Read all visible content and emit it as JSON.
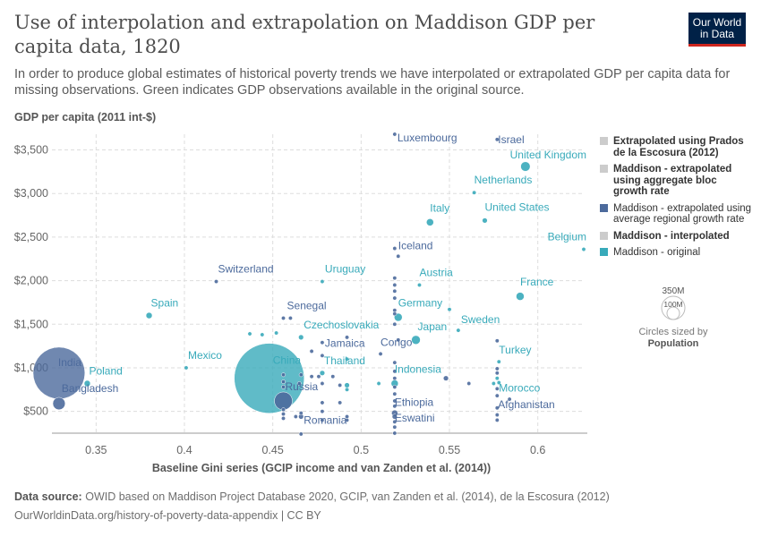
{
  "title": "Use of interpolation and extrapolation on Maddison GDP per capita data, 1820",
  "subtitle": "In order to produce global estimates of historical poverty trends we have interpolated or extrapolated GDP per capita data for missing observations. Green indicates GDP observations available in the original source.",
  "logo": {
    "line1": "Our World",
    "line2": "in Data"
  },
  "footer": {
    "source_label": "Data source:",
    "source_text": "OWID based on Maddison Project Database 2020, GCIP, van Zanden et al. (2014), de la Escosura (2012)",
    "url": "OurWorldinData.org/history-of-poverty-data-appendix | CC BY"
  },
  "legend": {
    "items": [
      {
        "label": "Extrapolated using Prados de la Escosura (2012)",
        "color": "#cccccc",
        "bold": true
      },
      {
        "label": "Maddison - extrapolated using aggregate bloc growth rate",
        "color": "#cccccc",
        "bold": true
      },
      {
        "label": "Maddison - extrapolated using average regional growth rate",
        "color": "#4c6a9c",
        "bold": false
      },
      {
        "label": "Maddison - interpolated",
        "color": "#cccccc",
        "bold": true
      },
      {
        "label": "Maddison - original",
        "color": "#38aaba",
        "bold": false
      }
    ],
    "size_title": "Circles sized by",
    "size_variable": "Population",
    "size_big": "350M",
    "size_small": "100M"
  },
  "colors": {
    "original": "#38aaba",
    "regional": "#4c6a9c",
    "grid": "#dddddd"
  },
  "chart_data": {
    "type": "scatter",
    "xlabel": "Baseline Gini series (GCIP income and van Zanden et al. (2014))",
    "ylabel": "GDP per capita (2011 int-$)",
    "xlim": [
      0.325,
      0.626
    ],
    "ylim": [
      250,
      3680
    ],
    "xticks": [
      {
        "v": 0.35,
        "label": "0.35"
      },
      {
        "v": 0.4,
        "label": "0.4"
      },
      {
        "v": 0.45,
        "label": "0.45"
      },
      {
        "v": 0.5,
        "label": "0.5"
      },
      {
        "v": 0.55,
        "label": "0.55"
      },
      {
        "v": 0.6,
        "label": "0.6"
      }
    ],
    "yticks": [
      {
        "v": 500,
        "label": "$500"
      },
      {
        "v": 1000,
        "label": "$1,000"
      },
      {
        "v": 1500,
        "label": "$1,500"
      },
      {
        "v": 2000,
        "label": "$2,000"
      },
      {
        "v": 2500,
        "label": "$2,500"
      },
      {
        "v": 3000,
        "label": "$3,000"
      },
      {
        "v": 3500,
        "label": "$3,500"
      }
    ],
    "grid": true,
    "legend_position": "right",
    "points": [
      {
        "x": 0.329,
        "y": 940,
        "pop": 209,
        "s": "regional",
        "label": "India",
        "ldx": -1,
        "ldy": -8
      },
      {
        "x": 0.329,
        "y": 590,
        "pop": 12,
        "s": "regional",
        "label": "Bangladesh",
        "ldx": 3,
        "ldy": -13
      },
      {
        "x": 0.345,
        "y": 820,
        "pop": 3,
        "s": "original",
        "label": "Poland",
        "ldx": 2,
        "ldy": -10
      },
      {
        "x": 0.38,
        "y": 1600,
        "pop": 3,
        "s": "original",
        "label": "Spain",
        "ldx": 2,
        "ldy": -10
      },
      {
        "x": 0.401,
        "y": 1000,
        "pop": 1,
        "s": "original",
        "label": "Mexico",
        "ldx": 2,
        "ldy": -10
      },
      {
        "x": 0.418,
        "y": 1990,
        "pop": 1,
        "s": "regional",
        "label": "Switzerland",
        "ldx": 2,
        "ldy": -10
      },
      {
        "x": 0.448,
        "y": 880,
        "pop": 381,
        "s": "original",
        "label": "China",
        "ldx": 4,
        "ldy": -16
      },
      {
        "x": 0.456,
        "y": 620,
        "pop": 25,
        "s": "regional",
        "label": "Russia",
        "ldx": 2,
        "ldy": -12
      },
      {
        "x": 0.456,
        "y": 1570,
        "pop": 1,
        "s": "regional",
        "label": "Senegal",
        "ldx": 4,
        "ldy": -10
      },
      {
        "x": 0.478,
        "y": 1990,
        "pop": 1,
        "s": "original",
        "label": "Uruguay",
        "ldx": 3,
        "ldy": -10
      },
      {
        "x": 0.466,
        "y": 1350,
        "pop": 2,
        "s": "original",
        "label": "Czechoslovakia",
        "ldx": 3,
        "ldy": -10
      },
      {
        "x": 0.478,
        "y": 1140,
        "pop": 1,
        "s": "regional",
        "label": "Jamaica",
        "ldx": 3,
        "ldy": -10
      },
      {
        "x": 0.478,
        "y": 940,
        "pop": 2,
        "s": "original",
        "label": "Thailand",
        "ldx": 2,
        "ldy": -10
      },
      {
        "x": 0.466,
        "y": 440,
        "pop": 2,
        "s": "regional",
        "label": "Romania",
        "ldx": 3,
        "ldy": 8
      },
      {
        "x": 0.519,
        "y": 3680,
        "pop": 1,
        "s": "regional",
        "label": "Luxembourg",
        "ldx": 3,
        "ldy": 8
      },
      {
        "x": 0.577,
        "y": 3620,
        "pop": 1,
        "s": "regional",
        "label": "Israel",
        "ldx": 1,
        "ldy": 4
      },
      {
        "x": 0.593,
        "y": 3310,
        "pop": 7,
        "s": "original",
        "label": "United Kingdom",
        "ldx": -3,
        "ldy": -9
      },
      {
        "x": 0.564,
        "y": 3010,
        "pop": 1,
        "s": "original",
        "label": "Netherlands",
        "ldx": 0,
        "ldy": -10
      },
      {
        "x": 0.539,
        "y": 2670,
        "pop": 4,
        "s": "original",
        "label": "Italy",
        "ldx": 0,
        "ldy": -12
      },
      {
        "x": 0.57,
        "y": 2690,
        "pop": 2,
        "s": "original",
        "label": "United States",
        "ldx": 0,
        "ldy": -11
      },
      {
        "x": 0.626,
        "y": 2360,
        "pop": 1,
        "s": "original",
        "label": "Belgium",
        "ldx": 0,
        "ldy": -10
      },
      {
        "x": 0.521,
        "y": 2280,
        "pop": 1,
        "s": "regional",
        "label": "Iceland",
        "ldx": 0,
        "ldy": -8
      },
      {
        "x": 0.533,
        "y": 1950,
        "pop": 1,
        "s": "original",
        "label": "Austria",
        "ldx": 0,
        "ldy": -10
      },
      {
        "x": 0.59,
        "y": 1820,
        "pop": 5,
        "s": "original",
        "label": "France",
        "ldx": 0,
        "ldy": -12
      },
      {
        "x": 0.521,
        "y": 1580,
        "pop": 5,
        "s": "original",
        "label": "Germany",
        "ldx": 0,
        "ldy": -12
      },
      {
        "x": 0.555,
        "y": 1430,
        "pop": 1,
        "s": "original",
        "label": "Sweden",
        "ldx": 3,
        "ldy": -8
      },
      {
        "x": 0.531,
        "y": 1320,
        "pop": 6,
        "s": "original",
        "label": "Japan",
        "ldx": 2,
        "ldy": -11
      },
      {
        "x": 0.511,
        "y": 1160,
        "pop": 1,
        "s": "regional",
        "label": "Congo",
        "ldx": 0,
        "ldy": -9
      },
      {
        "x": 0.519,
        "y": 820,
        "pop": 4,
        "s": "original",
        "label": "Indonesia",
        "ldx": 0,
        "ldy": -12
      },
      {
        "x": 0.578,
        "y": 1070,
        "pop": 1,
        "s": "original",
        "label": "Turkey",
        "ldx": 0,
        "ldy": -9
      },
      {
        "x": 0.578,
        "y": 830,
        "pop": 1,
        "s": "original",
        "label": "Morocco",
        "ldx": 0,
        "ldy": 10
      },
      {
        "x": 0.519,
        "y": 480,
        "pop": 3,
        "s": "regional",
        "label": "Ethiopia",
        "ldx": 0,
        "ldy": -8
      },
      {
        "x": 0.577,
        "y": 540,
        "pop": 1,
        "s": "regional",
        "label": "Afghanistan",
        "ldx": 1,
        "ldy": 0
      },
      {
        "x": 0.519,
        "y": 250,
        "pop": 1,
        "s": "regional",
        "label": "Eswatini",
        "ldx": 0,
        "ldy": -13
      },
      {
        "x": 0.456,
        "y": 920,
        "pop": 1,
        "s": "regional"
      },
      {
        "x": 0.456,
        "y": 840,
        "pop": 1,
        "s": "regional"
      },
      {
        "x": 0.456,
        "y": 780,
        "pop": 1,
        "s": "regional"
      },
      {
        "x": 0.456,
        "y": 520,
        "pop": 1,
        "s": "regional"
      },
      {
        "x": 0.456,
        "y": 470,
        "pop": 1,
        "s": "regional"
      },
      {
        "x": 0.456,
        "y": 420,
        "pop": 1,
        "s": "regional"
      },
      {
        "x": 0.46,
        "y": 1570,
        "pop": 1,
        "s": "regional"
      },
      {
        "x": 0.463,
        "y": 440,
        "pop": 1,
        "s": "regional"
      },
      {
        "x": 0.465,
        "y": 820,
        "pop": 1,
        "s": "regional"
      },
      {
        "x": 0.466,
        "y": 920,
        "pop": 1,
        "s": "regional"
      },
      {
        "x": 0.466,
        "y": 480,
        "pop": 1,
        "s": "regional"
      },
      {
        "x": 0.466,
        "y": 240,
        "pop": 1,
        "s": "regional"
      },
      {
        "x": 0.472,
        "y": 1190,
        "pop": 1,
        "s": "regional"
      },
      {
        "x": 0.472,
        "y": 900,
        "pop": 1,
        "s": "regional"
      },
      {
        "x": 0.476,
        "y": 900,
        "pop": 1,
        "s": "regional"
      },
      {
        "x": 0.478,
        "y": 1290,
        "pop": 1,
        "s": "regional"
      },
      {
        "x": 0.478,
        "y": 820,
        "pop": 1,
        "s": "regional"
      },
      {
        "x": 0.478,
        "y": 600,
        "pop": 1,
        "s": "regional"
      },
      {
        "x": 0.478,
        "y": 500,
        "pop": 1,
        "s": "regional"
      },
      {
        "x": 0.478,
        "y": 400,
        "pop": 1,
        "s": "regional"
      },
      {
        "x": 0.484,
        "y": 900,
        "pop": 1,
        "s": "regional"
      },
      {
        "x": 0.488,
        "y": 800,
        "pop": 1,
        "s": "regional"
      },
      {
        "x": 0.488,
        "y": 600,
        "pop": 1,
        "s": "regional"
      },
      {
        "x": 0.492,
        "y": 1350,
        "pop": 1,
        "s": "regional"
      },
      {
        "x": 0.492,
        "y": 1100,
        "pop": 1,
        "s": "original"
      },
      {
        "x": 0.492,
        "y": 800,
        "pop": 2,
        "s": "original"
      },
      {
        "x": 0.492,
        "y": 750,
        "pop": 1,
        "s": "original"
      },
      {
        "x": 0.492,
        "y": 440,
        "pop": 1,
        "s": "regional"
      },
      {
        "x": 0.492,
        "y": 400,
        "pop": 1,
        "s": "regional"
      },
      {
        "x": 0.452,
        "y": 1400,
        "pop": 1,
        "s": "original"
      },
      {
        "x": 0.444,
        "y": 1380,
        "pop": 1,
        "s": "original"
      },
      {
        "x": 0.437,
        "y": 1390,
        "pop": 1,
        "s": "original"
      },
      {
        "x": 0.51,
        "y": 820,
        "pop": 1,
        "s": "original"
      },
      {
        "x": 0.519,
        "y": 2370,
        "pop": 1,
        "s": "regional"
      },
      {
        "x": 0.519,
        "y": 2030,
        "pop": 1,
        "s": "regional"
      },
      {
        "x": 0.519,
        "y": 1950,
        "pop": 1,
        "s": "regional"
      },
      {
        "x": 0.519,
        "y": 1880,
        "pop": 1,
        "s": "regional"
      },
      {
        "x": 0.519,
        "y": 1800,
        "pop": 1,
        "s": "regional"
      },
      {
        "x": 0.519,
        "y": 1660,
        "pop": 1,
        "s": "regional"
      },
      {
        "x": 0.519,
        "y": 1620,
        "pop": 1,
        "s": "regional"
      },
      {
        "x": 0.519,
        "y": 1500,
        "pop": 1,
        "s": "regional"
      },
      {
        "x": 0.521,
        "y": 1320,
        "pop": 1,
        "s": "regional"
      },
      {
        "x": 0.519,
        "y": 1060,
        "pop": 1,
        "s": "regional"
      },
      {
        "x": 0.519,
        "y": 960,
        "pop": 1,
        "s": "regional"
      },
      {
        "x": 0.519,
        "y": 880,
        "pop": 1,
        "s": "regional"
      },
      {
        "x": 0.519,
        "y": 780,
        "pop": 1,
        "s": "regional"
      },
      {
        "x": 0.519,
        "y": 700,
        "pop": 1,
        "s": "regional"
      },
      {
        "x": 0.519,
        "y": 620,
        "pop": 1,
        "s": "regional"
      },
      {
        "x": 0.519,
        "y": 560,
        "pop": 1,
        "s": "regional"
      },
      {
        "x": 0.519,
        "y": 440,
        "pop": 2,
        "s": "regional"
      },
      {
        "x": 0.519,
        "y": 380,
        "pop": 1,
        "s": "regional"
      },
      {
        "x": 0.519,
        "y": 320,
        "pop": 1,
        "s": "regional"
      },
      {
        "x": 0.548,
        "y": 880,
        "pop": 2,
        "s": "regional"
      },
      {
        "x": 0.55,
        "y": 1670,
        "pop": 1,
        "s": "original"
      },
      {
        "x": 0.561,
        "y": 820,
        "pop": 1,
        "s": "regional"
      },
      {
        "x": 0.575,
        "y": 820,
        "pop": 1,
        "s": "original"
      },
      {
        "x": 0.577,
        "y": 1310,
        "pop": 1,
        "s": "regional"
      },
      {
        "x": 0.577,
        "y": 990,
        "pop": 1,
        "s": "regional"
      },
      {
        "x": 0.577,
        "y": 940,
        "pop": 1,
        "s": "regional"
      },
      {
        "x": 0.577,
        "y": 880,
        "pop": 1,
        "s": "original"
      },
      {
        "x": 0.577,
        "y": 760,
        "pop": 1,
        "s": "regional"
      },
      {
        "x": 0.577,
        "y": 680,
        "pop": 1,
        "s": "regional"
      },
      {
        "x": 0.577,
        "y": 460,
        "pop": 1,
        "s": "regional"
      },
      {
        "x": 0.577,
        "y": 400,
        "pop": 1,
        "s": "regional"
      },
      {
        "x": 0.584,
        "y": 640,
        "pop": 1,
        "s": "regional"
      }
    ]
  }
}
